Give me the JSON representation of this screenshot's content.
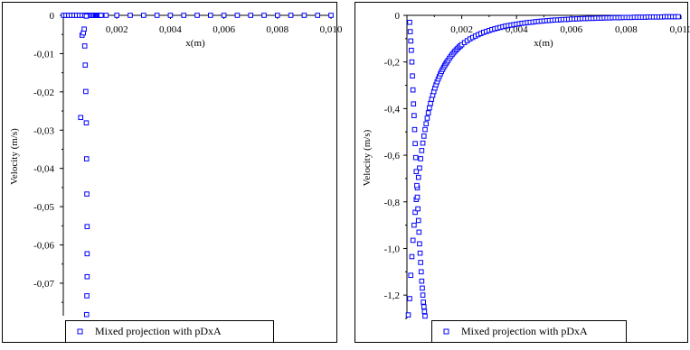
{
  "chart_data": [
    {
      "type": "scatter",
      "title": "",
      "xlabel": "x(m)",
      "ylabel": "Velocity (m/s)",
      "xlim": [
        0,
        0.01
      ],
      "ylim": [
        -0.0785,
        0
      ],
      "xticks": [
        0,
        0.002,
        0.004,
        0.006,
        0.008,
        0.01
      ],
      "xtick_labels": [
        "0",
        "0,002",
        "0,004",
        "0,006",
        "0,008",
        "0,010"
      ],
      "yticks": [
        0,
        -0.01,
        -0.02,
        -0.03,
        -0.04,
        -0.05,
        -0.06,
        -0.07
      ],
      "ytick_labels": [
        "0",
        "-0,01",
        "-0,02",
        "-0,03",
        "-0,04",
        "-0,05",
        "-0,06",
        "-0,07"
      ],
      "grid": false,
      "legend": {
        "position": "bottom-center"
      },
      "marker_color": "#0000ff",
      "series": [
        {
          "name": "Mixed projection with pDxA",
          "x": [
            1e-05,
            0.0001,
            0.0002,
            0.0003,
            0.0004,
            0.0005,
            0.0006,
            0.0007,
            0.0008,
            0.0009,
            0.00095,
            0.001,
            0.00105,
            0.0011,
            0.00115,
            0.0012,
            0.00123,
            0.00126,
            0.00129,
            0.00132,
            0.00135,
            0.00138,
            0.00141,
            0.0016,
            0.002,
            0.0025,
            0.003,
            0.0035,
            0.004,
            0.0045,
            0.005,
            0.0055,
            0.006,
            0.0065,
            0.007,
            0.0075,
            0.008,
            0.0085,
            0.009,
            0.0095,
            0.01,
            0.00065,
            0.0007,
            0.00075,
            0.00078,
            0.0008,
            0.00082,
            0.00084,
            0.00086,
            0.00087,
            0.00088,
            0.00089,
            0.00089,
            0.00089,
            0.00088,
            0.00087,
            0.00086
          ],
          "y": [
            0,
            0,
            0,
            0,
            0,
            0,
            0,
            0,
            0,
            0,
            0,
            0,
            0,
            0,
            0,
            0,
            0,
            0,
            0,
            0,
            0,
            0,
            0,
            0,
            0,
            0,
            0,
            0,
            0,
            0,
            0,
            0,
            0,
            0,
            0,
            0,
            0,
            0,
            0,
            0,
            0,
            -0.0267,
            -0.0052,
            -0.0046,
            -0.0036,
            -0.008,
            -0.013,
            -0.0199,
            -0.0281,
            -0.0375,
            -0.0467,
            -0.0552,
            -0.0623,
            -0.0683,
            -0.0733,
            -0.0782,
            -0.0002
          ]
        }
      ]
    },
    {
      "type": "scatter",
      "title": "",
      "xlabel": "x(m)",
      "ylabel": "Velocity (m/s)",
      "xlim": [
        0,
        0.01
      ],
      "ylim": [
        -1.3,
        0
      ],
      "xticks": [
        0,
        0.002,
        0.004,
        0.006,
        0.008,
        0.01
      ],
      "xtick_labels": [
        "0",
        "0,002",
        "0,004",
        "0,006",
        "0,008",
        "0,010"
      ],
      "yticks": [
        0,
        -0.2,
        -0.4,
        -0.6,
        -0.8,
        -1.0,
        -1.2
      ],
      "ytick_labels": [
        "0",
        "-0,2",
        "-0,4",
        "-0,6",
        "-0,8",
        "-1,0",
        "-1,2"
      ],
      "grid": false,
      "legend": {
        "position": "bottom-center"
      },
      "marker_color": "#0000ff",
      "series": [
        {
          "name": "Mixed projection with pDxA",
          "x": [
            5e-05,
            0.0001,
            0.00014,
            0.00018,
            0.00022,
            0.00026,
            0.0003,
            0.00034,
            0.00038,
            0.00042,
            0.00046,
            0.0005,
            0.00054,
            0.00058,
            0.00062,
            0.00066,
            0.0007,
            0.00074,
            0.00078,
            0.00082,
            0.00086,
            0.0009,
            0.00094,
            0.00098,
            0.00102,
            0.00106,
            0.0011,
            0.00114,
            0.00118,
            0.00122,
            0.00126,
            0.0013,
            0.00134,
            0.00138,
            0.00142,
            0.00146,
            0.0015,
            0.00155,
            0.0016,
            0.00165,
            0.0017,
            0.00175,
            0.0018,
            0.00185,
            0.0019,
            0.00195,
            0.002,
            0.0021,
            0.0022,
            0.0023,
            0.0024,
            0.0025,
            0.0026,
            0.0027,
            0.0028,
            0.0029,
            0.003,
            0.0031,
            0.0032,
            0.0033,
            0.0034,
            0.0035,
            0.0036,
            0.0037,
            0.0038,
            0.0039,
            0.004,
            0.0041,
            0.0042,
            0.0043,
            0.0044,
            0.0045,
            0.0046,
            0.0047,
            0.0048,
            0.0049,
            0.005,
            0.0051,
            0.0052,
            0.0053,
            0.0054,
            0.0055,
            0.0056,
            0.0057,
            0.0058,
            0.0059,
            0.006,
            0.0061,
            0.0062,
            0.0063,
            0.0064,
            0.0065,
            0.0066,
            0.0067,
            0.0068,
            0.0069,
            0.007,
            0.0071,
            0.0072,
            0.0073,
            0.0074,
            0.0075,
            0.0076,
            0.0077,
            0.0078,
            0.0079,
            0.008,
            0.0081,
            0.0082,
            0.0083,
            0.0084,
            0.0085,
            0.0086,
            0.0087,
            0.0088,
            0.0089,
            0.009,
            0.0091,
            0.0092,
            0.0093,
            0.0094,
            0.0095,
            0.0096,
            0.0097,
            0.0098,
            0.0099,
            0.0001,
            0.00012,
            0.00014,
            0.00016,
            0.00018,
            0.0002,
            0.00022,
            0.00024,
            0.00026,
            0.00028,
            0.0003,
            0.00032,
            0.00034,
            0.00036,
            0.00038,
            0.0004,
            0.00042,
            0.00044,
            0.00046,
            0.00048,
            0.0005,
            0.00052,
            0.00054,
            0.00056,
            0.00058,
            0.0006,
            0.00062,
            0.00064,
            0.00066
          ],
          "y": [
            -1.285,
            -1.215,
            -1.115,
            -1.035,
            -0.965,
            -0.9,
            -0.845,
            -0.79,
            -0.74,
            -0.695,
            -0.655,
            -0.615,
            -0.58,
            -0.548,
            -0.518,
            -0.49,
            -0.465,
            -0.441,
            -0.418,
            -0.397,
            -0.378,
            -0.36,
            -0.343,
            -0.327,
            -0.312,
            -0.298,
            -0.285,
            -0.273,
            -0.262,
            -0.251,
            -0.241,
            -0.232,
            -0.223,
            -0.215,
            -0.207,
            -0.2,
            -0.193,
            -0.184,
            -0.176,
            -0.168,
            -0.161,
            -0.154,
            -0.148,
            -0.142,
            -0.136,
            -0.131,
            -0.126,
            -0.117,
            -0.109,
            -0.101,
            -0.095,
            -0.089,
            -0.083,
            -0.078,
            -0.073,
            -0.069,
            -0.065,
            -0.061,
            -0.058,
            -0.055,
            -0.052,
            -0.049,
            -0.046,
            -0.044,
            -0.042,
            -0.04,
            -0.038,
            -0.036,
            -0.034,
            -0.033,
            -0.031,
            -0.03,
            -0.029,
            -0.027,
            -0.026,
            -0.025,
            -0.024,
            -0.023,
            -0.022,
            -0.021,
            -0.02,
            -0.02,
            -0.019,
            -0.018,
            -0.018,
            -0.017,
            -0.016,
            -0.016,
            -0.015,
            -0.015,
            -0.014,
            -0.014,
            -0.013,
            -0.013,
            -0.013,
            -0.012,
            -0.012,
            -0.012,
            -0.011,
            -0.011,
            -0.011,
            -0.01,
            -0.01,
            -0.01,
            -0.01,
            -0.009,
            -0.009,
            -0.009,
            -0.009,
            -0.008,
            -0.008,
            -0.008,
            -0.008,
            -0.008,
            -0.007,
            -0.007,
            -0.007,
            -0.007,
            -0.007,
            -0.007,
            -0.006,
            -0.006,
            -0.006,
            -0.006,
            -0.006,
            -0.006,
            -0.03,
            -0.07,
            -0.11,
            -0.15,
            -0.2,
            -0.26,
            -0.32,
            -0.38,
            -0.43,
            -0.49,
            -0.55,
            -0.61,
            -0.67,
            -0.73,
            -0.78,
            -0.83,
            -0.88,
            -0.93,
            -0.98,
            -1.02,
            -1.06,
            -1.1,
            -1.14,
            -1.17,
            -1.2,
            -1.23,
            -1.25,
            -1.27,
            -1.29
          ]
        }
      ]
    }
  ]
}
